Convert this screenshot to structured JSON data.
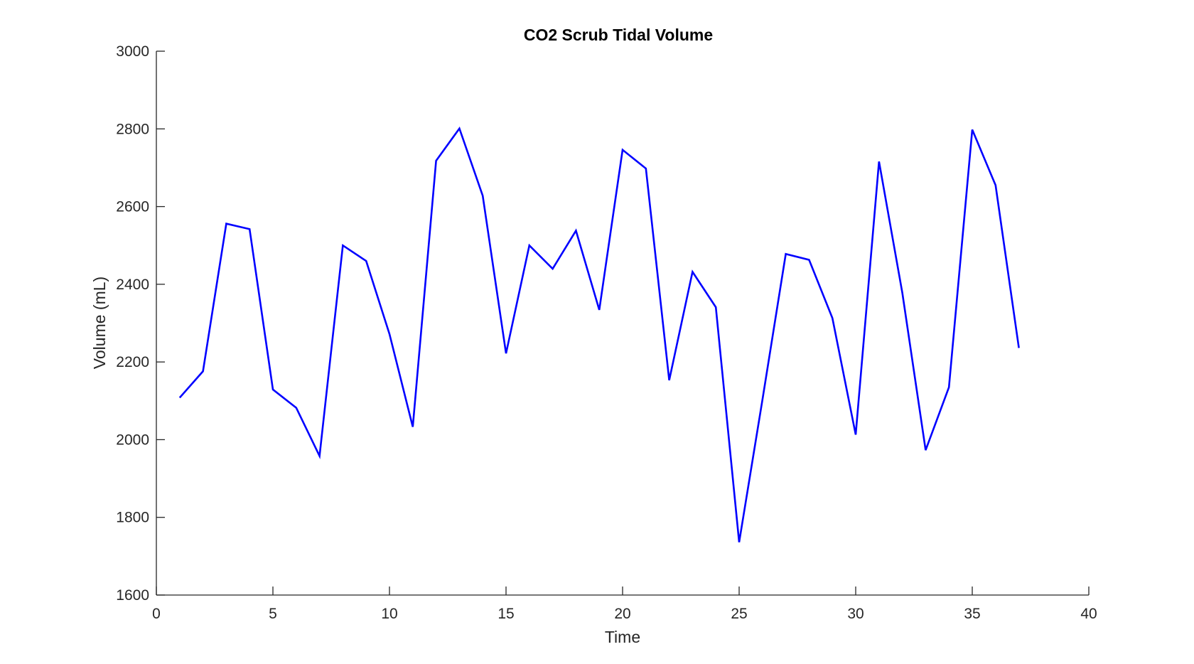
{
  "chart_data": {
    "type": "line",
    "title": "CO2 Scrub Tidal Volume",
    "xlabel": "Time",
    "ylabel": "Volume (mL)",
    "xlim": [
      0,
      40
    ],
    "ylim": [
      1600,
      3000
    ],
    "xticks": [
      0,
      5,
      10,
      15,
      20,
      25,
      30,
      35,
      40
    ],
    "yticks": [
      1600,
      1800,
      2000,
      2200,
      2400,
      2600,
      2800,
      3000
    ],
    "xtick_labels": [
      "0",
      "5",
      "10",
      "15",
      "20",
      "25",
      "30",
      "35",
      "40"
    ],
    "ytick_labels": [
      "1600",
      "1800",
      "2000",
      "2200",
      "2400",
      "2600",
      "2800",
      "3000"
    ],
    "grid": false,
    "series": [
      {
        "name": "Tidal Volume",
        "color": "#0000ff",
        "x": [
          1,
          2,
          3,
          4,
          5,
          6,
          7,
          8,
          9,
          10,
          11,
          12,
          13,
          14,
          15,
          16,
          17,
          18,
          19,
          20,
          21,
          22,
          23,
          24,
          25,
          26,
          27,
          28,
          29,
          30,
          31,
          32,
          33,
          34,
          35,
          36,
          37
        ],
        "values": [
          2108,
          2176,
          2556,
          2542,
          2129,
          2082,
          1958,
          2500,
          2460,
          2272,
          2033,
          2718,
          2801,
          2628,
          2222,
          2500,
          2440,
          2538,
          2334,
          2746,
          2698,
          2153,
          2432,
          2341,
          1736,
          2103,
          2478,
          2463,
          2313,
          2013,
          2716,
          2378,
          1973,
          2135,
          2798,
          2655,
          2236
        ]
      }
    ]
  }
}
